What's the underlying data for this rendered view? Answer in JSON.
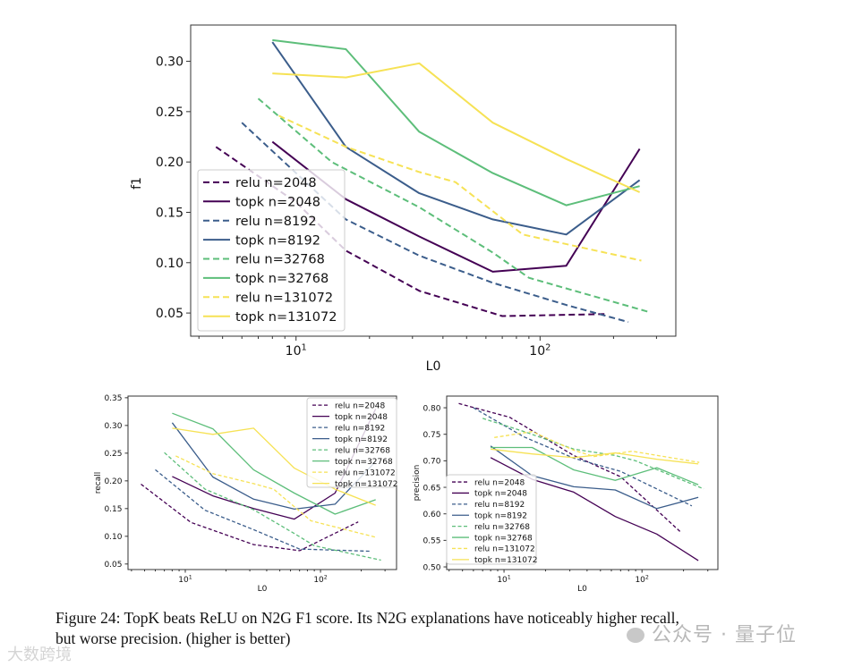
{
  "colors": {
    "n2048": "#440154",
    "n8192": "#3b5d8b",
    "n32768": "#5dbe7a",
    "n131072": "#f6e255",
    "axis": "#333333"
  },
  "chart_data": [
    {
      "id": "f1",
      "type": "line",
      "xlabel": "L0",
      "ylabel": "f1",
      "xscale": "log",
      "xlim": [
        3.7,
        360
      ],
      "ylim": [
        0.027,
        0.336
      ],
      "xticks": [
        {
          "v": 10,
          "label": "10",
          "exp": "1"
        },
        {
          "v": 100,
          "label": "10",
          "exp": "2"
        }
      ],
      "yticks": [
        0.05,
        0.1,
        0.15,
        0.2,
        0.25,
        0.3
      ],
      "ytick_labels": [
        "0.05",
        "0.10",
        "0.15",
        "0.20",
        "0.25",
        "0.30"
      ],
      "legend": "lower-left",
      "series": [
        {
          "name": "relu n=2048",
          "color": "n2048",
          "dash": true,
          "x": [
            4.7,
            10,
            16,
            32,
            70,
            190
          ],
          "y": [
            0.215,
            0.16,
            0.112,
            0.072,
            0.047,
            0.049
          ]
        },
        {
          "name": "topk n=2048",
          "color": "n2048",
          "dash": false,
          "x": [
            8,
            16,
            32,
            64,
            128,
            256
          ],
          "y": [
            0.22,
            0.163,
            0.126,
            0.091,
            0.097,
            0.213
          ]
        },
        {
          "name": "relu n=8192",
          "color": "n8192",
          "dash": true,
          "x": [
            6,
            16,
            32,
            64,
            128,
            230
          ],
          "y": [
            0.239,
            0.143,
            0.107,
            0.08,
            0.058,
            0.041
          ]
        },
        {
          "name": "topk n=8192",
          "color": "n8192",
          "dash": false,
          "x": [
            8,
            16,
            32,
            64,
            128,
            256
          ],
          "y": [
            0.319,
            0.215,
            0.169,
            0.143,
            0.128,
            0.182
          ]
        },
        {
          "name": "relu n=32768",
          "color": "n32768",
          "dash": true,
          "x": [
            7,
            14,
            32,
            64,
            90,
            280
          ],
          "y": [
            0.263,
            0.2,
            0.155,
            0.11,
            0.085,
            0.051
          ]
        },
        {
          "name": "topk n=32768",
          "color": "n32768",
          "dash": false,
          "x": [
            8,
            16,
            32,
            64,
            128,
            256
          ],
          "y": [
            0.321,
            0.312,
            0.23,
            0.189,
            0.157,
            0.176
          ]
        },
        {
          "name": "relu n=131072",
          "color": "n131072",
          "dash": true,
          "x": [
            8.5,
            16,
            32,
            45,
            85,
            260
          ],
          "y": [
            0.246,
            0.215,
            0.19,
            0.18,
            0.128,
            0.102
          ]
        },
        {
          "name": "topk n=131072",
          "color": "n131072",
          "dash": false,
          "x": [
            8,
            16,
            32,
            64,
            128,
            256
          ],
          "y": [
            0.288,
            0.284,
            0.298,
            0.239,
            0.203,
            0.17
          ]
        }
      ]
    },
    {
      "id": "recall",
      "type": "line",
      "xlabel": "L0",
      "ylabel": "recall",
      "xscale": "log",
      "xlim": [
        3.77,
        365
      ],
      "ylim": [
        0.04,
        0.353
      ],
      "xticks": [
        {
          "v": 10,
          "label": "10",
          "exp": "1"
        },
        {
          "v": 100,
          "label": "10",
          "exp": "2"
        }
      ],
      "yticks": [
        0.05,
        0.1,
        0.15,
        0.2,
        0.25,
        0.3,
        0.35
      ],
      "ytick_labels": [
        "0.05",
        "0.10",
        "0.15",
        "0.20",
        "0.25",
        "0.30",
        "0.35"
      ],
      "legend": "upper-right",
      "series": [
        {
          "name": "relu n=2048",
          "color": "n2048",
          "dash": true,
          "x": [
            4.7,
            11,
            32,
            70,
            190
          ],
          "y": [
            0.194,
            0.125,
            0.085,
            0.074,
            0.126
          ]
        },
        {
          "name": "topk n=2048",
          "color": "n2048",
          "dash": false,
          "x": [
            8,
            16,
            32,
            64,
            128,
            256
          ],
          "y": [
            0.208,
            0.173,
            0.15,
            0.131,
            0.178,
            0.33
          ]
        },
        {
          "name": "relu n=8192",
          "color": "n8192",
          "dash": true,
          "x": [
            6,
            14,
            32,
            70,
            230
          ],
          "y": [
            0.22,
            0.147,
            0.112,
            0.077,
            0.073
          ]
        },
        {
          "name": "topk n=8192",
          "color": "n8192",
          "dash": false,
          "x": [
            8,
            16,
            32,
            64,
            128,
            256
          ],
          "y": [
            0.305,
            0.207,
            0.167,
            0.149,
            0.158,
            0.235
          ]
        },
        {
          "name": "relu n=32768",
          "color": "n32768",
          "dash": true,
          "x": [
            7,
            14,
            32,
            64,
            90,
            280
          ],
          "y": [
            0.251,
            0.185,
            0.148,
            0.105,
            0.083,
            0.057
          ]
        },
        {
          "name": "topk n=32768",
          "color": "n32768",
          "dash": false,
          "x": [
            8,
            16,
            32,
            64,
            128,
            256
          ],
          "y": [
            0.322,
            0.294,
            0.22,
            0.178,
            0.14,
            0.166
          ]
        },
        {
          "name": "relu n=131072",
          "color": "n131072",
          "dash": true,
          "x": [
            8.5,
            16,
            32,
            45,
            85,
            260
          ],
          "y": [
            0.245,
            0.213,
            0.195,
            0.185,
            0.128,
            0.098
          ]
        },
        {
          "name": "topk n=131072",
          "color": "n131072",
          "dash": false,
          "x": [
            8,
            16,
            32,
            64,
            128,
            256
          ],
          "y": [
            0.295,
            0.284,
            0.295,
            0.223,
            0.185,
            0.156
          ]
        }
      ]
    },
    {
      "id": "precision",
      "type": "line",
      "xlabel": "L0",
      "ylabel": "precision",
      "xscale": "log",
      "xlim": [
        3.84,
        355
      ],
      "ylim": [
        0.495,
        0.822
      ],
      "xticks": [
        {
          "v": 10,
          "label": "10",
          "exp": "1"
        },
        {
          "v": 100,
          "label": "10",
          "exp": "2"
        }
      ],
      "yticks": [
        0.5,
        0.55,
        0.6,
        0.65,
        0.7,
        0.75,
        0.8
      ],
      "ytick_labels": [
        "0.50",
        "0.55",
        "0.60",
        "0.65",
        "0.70",
        "0.75",
        "0.80"
      ],
      "legend": "lower-left",
      "series": [
        {
          "name": "relu n=2048",
          "color": "n2048",
          "dash": true,
          "x": [
            4.7,
            11,
            32,
            70,
            190
          ],
          "y": [
            0.808,
            0.782,
            0.71,
            0.67,
            0.566
          ]
        },
        {
          "name": "topk n=2048",
          "color": "n2048",
          "dash": false,
          "x": [
            8,
            16,
            32,
            64,
            128,
            256
          ],
          "y": [
            0.706,
            0.665,
            0.641,
            0.595,
            0.562,
            0.512
          ]
        },
        {
          "name": "relu n=8192",
          "color": "n8192",
          "dash": true,
          "x": [
            6,
            14,
            32,
            70,
            230
          ],
          "y": [
            0.8,
            0.745,
            0.705,
            0.68,
            0.615
          ]
        },
        {
          "name": "topk n=8192",
          "color": "n8192",
          "dash": false,
          "x": [
            8,
            16,
            32,
            64,
            128,
            256
          ],
          "y": [
            0.728,
            0.672,
            0.651,
            0.645,
            0.61,
            0.631
          ]
        },
        {
          "name": "relu n=32768",
          "color": "n32768",
          "dash": true,
          "x": [
            7,
            14,
            32,
            64,
            90,
            280
          ],
          "y": [
            0.78,
            0.755,
            0.722,
            0.71,
            0.7,
            0.647
          ]
        },
        {
          "name": "topk n=32768",
          "color": "n32768",
          "dash": false,
          "x": [
            8,
            16,
            32,
            64,
            128,
            256
          ],
          "y": [
            0.725,
            0.725,
            0.683,
            0.663,
            0.687,
            0.655
          ]
        },
        {
          "name": "relu n=131072",
          "color": "n131072",
          "dash": true,
          "x": [
            8.5,
            16,
            32,
            45,
            85,
            260
          ],
          "y": [
            0.744,
            0.755,
            0.72,
            0.708,
            0.718,
            0.697
          ]
        },
        {
          "name": "topk n=131072",
          "color": "n131072",
          "dash": false,
          "x": [
            8,
            16,
            32,
            64,
            128,
            256
          ],
          "y": [
            0.722,
            0.713,
            0.706,
            0.715,
            0.703,
            0.694
          ]
        }
      ]
    }
  ],
  "caption": {
    "line1": "Figure 24: TopK beats ReLU on N2G F1 score. Its N2G explanations have noticeably higher recall,",
    "line2": "but worse precision. (higher is better)"
  },
  "watermarks": {
    "wechat": "公众号 · 量子位",
    "corner": "大数跨境"
  }
}
